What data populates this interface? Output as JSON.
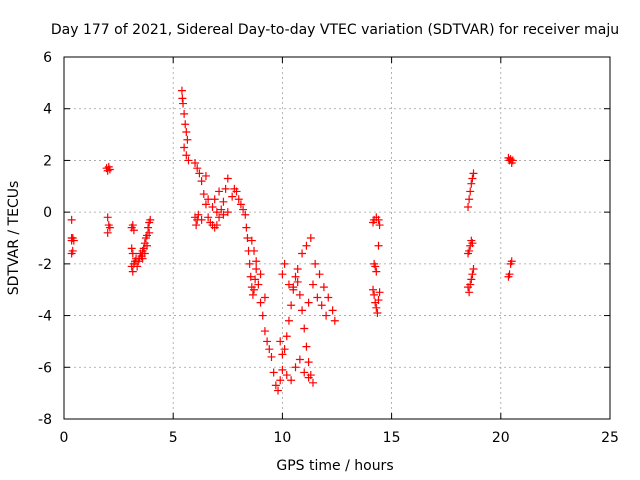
{
  "chart_data": {
    "type": "scatter",
    "title": "Day 177 of 2021, Sidereal Day-to-day VTEC variation (SDTVAR) for receiver maju",
    "xlabel": "GPS time / hours",
    "ylabel": "SDTVAR / TECUs",
    "xlim": [
      0,
      25
    ],
    "ylim": [
      -8,
      6
    ],
    "x_ticks": [
      0,
      5,
      10,
      15,
      20,
      25
    ],
    "y_ticks": [
      -8,
      -6,
      -4,
      -2,
      0,
      2,
      4,
      6
    ],
    "x_tick_labels": [
      "0",
      "5",
      "10",
      "15",
      "20",
      "25"
    ],
    "y_tick_labels": [
      "-8",
      "-6",
      "-4",
      "-2",
      "0",
      "2",
      "4",
      "6"
    ],
    "grid": true,
    "marker": "+",
    "color": "#ff0000",
    "series": [
      {
        "name": "SDTVAR",
        "points": [
          [
            0.35,
            -0.3
          ],
          [
            0.35,
            -1.0
          ],
          [
            0.35,
            -1.1
          ],
          [
            0.35,
            -1.6
          ],
          [
            0.4,
            -1.0
          ],
          [
            0.4,
            -1.5
          ],
          [
            0.45,
            -1.1
          ],
          [
            1.95,
            1.7
          ],
          [
            2.0,
            1.6
          ],
          [
            2.05,
            1.75
          ],
          [
            2.1,
            1.65
          ],
          [
            2.0,
            -0.2
          ],
          [
            2.05,
            -0.5
          ],
          [
            2.0,
            -0.8
          ],
          [
            2.1,
            -0.6
          ],
          [
            3.1,
            -0.6
          ],
          [
            3.15,
            -0.5
          ],
          [
            3.2,
            -0.7
          ],
          [
            3.1,
            -1.4
          ],
          [
            3.15,
            -1.6
          ],
          [
            3.1,
            -2.1
          ],
          [
            3.15,
            -2.3
          ],
          [
            3.2,
            -2.0
          ],
          [
            3.25,
            -1.9
          ],
          [
            3.3,
            -1.8
          ],
          [
            3.35,
            -2.1
          ],
          [
            3.4,
            -1.9
          ],
          [
            3.45,
            -1.8
          ],
          [
            3.5,
            -1.6
          ],
          [
            3.55,
            -1.7
          ],
          [
            3.6,
            -1.5
          ],
          [
            3.65,
            -1.4
          ],
          [
            3.7,
            -1.2
          ],
          [
            3.75,
            -1.0
          ],
          [
            3.8,
            -0.9
          ],
          [
            3.85,
            -0.6
          ],
          [
            3.9,
            -0.4
          ],
          [
            3.95,
            -0.3
          ],
          [
            3.6,
            -1.8
          ],
          [
            3.7,
            -1.6
          ],
          [
            3.8,
            -1.3
          ],
          [
            3.9,
            -0.8
          ],
          [
            5.4,
            4.7
          ],
          [
            5.42,
            4.4
          ],
          [
            5.45,
            4.2
          ],
          [
            5.5,
            3.8
          ],
          [
            5.55,
            3.4
          ],
          [
            5.6,
            3.1
          ],
          [
            5.65,
            2.8
          ],
          [
            5.5,
            2.5
          ],
          [
            5.6,
            2.2
          ],
          [
            5.7,
            2.0
          ],
          [
            6.0,
            -0.2
          ],
          [
            6.05,
            -0.5
          ],
          [
            6.1,
            -0.3
          ],
          [
            6.15,
            -0.1
          ],
          [
            6.0,
            1.9
          ],
          [
            6.1,
            1.7
          ],
          [
            6.2,
            1.5
          ],
          [
            6.3,
            1.2
          ],
          [
            6.4,
            0.7
          ],
          [
            6.5,
            0.3
          ],
          [
            6.6,
            -0.2
          ],
          [
            6.7,
            -0.4
          ],
          [
            6.8,
            -0.5
          ],
          [
            6.9,
            -0.6
          ],
          [
            7.0,
            -0.5
          ],
          [
            7.1,
            -0.2
          ],
          [
            7.2,
            0.1
          ],
          [
            7.3,
            0.4
          ],
          [
            7.4,
            0.9
          ],
          [
            7.5,
            1.3
          ],
          [
            6.5,
            1.4
          ],
          [
            6.9,
            0.5
          ],
          [
            7.1,
            0.8
          ],
          [
            7.3,
            -0.1
          ],
          [
            7.5,
            0.0
          ],
          [
            6.8,
            0.2
          ],
          [
            6.3,
            -0.3
          ],
          [
            6.6,
            0.5
          ],
          [
            7.0,
            0.0
          ],
          [
            7.7,
            0.6
          ],
          [
            7.8,
            0.9
          ],
          [
            7.9,
            0.8
          ],
          [
            8.0,
            0.5
          ],
          [
            8.1,
            0.3
          ],
          [
            8.2,
            0.1
          ],
          [
            8.3,
            -0.1
          ],
          [
            8.35,
            -0.6
          ],
          [
            8.4,
            -1.0
          ],
          [
            8.45,
            -1.5
          ],
          [
            8.5,
            -2.0
          ],
          [
            8.55,
            -2.5
          ],
          [
            8.6,
            -2.9
          ],
          [
            8.65,
            -3.2
          ],
          [
            8.7,
            -3.0
          ],
          [
            8.75,
            -2.6
          ],
          [
            8.8,
            -2.2
          ],
          [
            8.9,
            -2.8
          ],
          [
            9.0,
            -3.5
          ],
          [
            9.1,
            -4.0
          ],
          [
            9.2,
            -4.6
          ],
          [
            9.3,
            -5.0
          ],
          [
            9.4,
            -5.3
          ],
          [
            9.5,
            -5.6
          ],
          [
            9.6,
            -6.2
          ],
          [
            9.7,
            -6.7
          ],
          [
            9.8,
            -6.9
          ],
          [
            9.9,
            -6.5
          ],
          [
            8.6,
            -1.1
          ],
          [
            8.7,
            -1.5
          ],
          [
            8.8,
            -1.9
          ],
          [
            9.0,
            -2.4
          ],
          [
            9.2,
            -3.3
          ],
          [
            9.9,
            -5.0
          ],
          [
            10.0,
            -5.5
          ],
          [
            10.1,
            -5.3
          ],
          [
            10.2,
            -4.8
          ],
          [
            10.3,
            -4.2
          ],
          [
            10.4,
            -3.6
          ],
          [
            10.5,
            -3.0
          ],
          [
            10.6,
            -2.5
          ],
          [
            10.7,
            -2.7
          ],
          [
            10.8,
            -3.2
          ],
          [
            10.9,
            -3.8
          ],
          [
            11.0,
            -4.5
          ],
          [
            11.1,
            -5.2
          ],
          [
            11.2,
            -5.8
          ],
          [
            11.3,
            -6.3
          ],
          [
            11.4,
            -6.6
          ],
          [
            10.0,
            -6.1
          ],
          [
            10.2,
            -6.3
          ],
          [
            10.4,
            -6.5
          ],
          [
            10.6,
            -6.0
          ],
          [
            10.8,
            -5.7
          ],
          [
            11.0,
            -6.2
          ],
          [
            11.2,
            -6.4
          ],
          [
            10.0,
            -2.4
          ],
          [
            10.1,
            -2.0
          ],
          [
            10.3,
            -2.8
          ],
          [
            10.5,
            -2.9
          ],
          [
            10.7,
            -2.2
          ],
          [
            10.9,
            -1.6
          ],
          [
            11.1,
            -1.3
          ],
          [
            11.3,
            -1.0
          ],
          [
            11.5,
            -2.0
          ],
          [
            11.7,
            -2.4
          ],
          [
            11.9,
            -2.9
          ],
          [
            12.1,
            -3.3
          ],
          [
            12.3,
            -3.8
          ],
          [
            12.4,
            -4.2
          ],
          [
            11.6,
            -3.3
          ],
          [
            11.8,
            -3.6
          ],
          [
            12.0,
            -4.0
          ],
          [
            11.4,
            -2.8
          ],
          [
            11.2,
            -3.5
          ],
          [
            14.15,
            -0.4
          ],
          [
            14.2,
            -0.3
          ],
          [
            14.3,
            -0.2
          ],
          [
            14.4,
            -0.3
          ],
          [
            14.45,
            -0.5
          ],
          [
            14.2,
            -2.0
          ],
          [
            14.25,
            -2.1
          ],
          [
            14.3,
            -2.3
          ],
          [
            14.4,
            -1.3
          ],
          [
            14.15,
            -3.0
          ],
          [
            14.2,
            -3.2
          ],
          [
            14.25,
            -3.5
          ],
          [
            14.3,
            -3.7
          ],
          [
            14.35,
            -3.9
          ],
          [
            14.4,
            -3.4
          ],
          [
            14.45,
            -3.1
          ],
          [
            18.5,
            0.2
          ],
          [
            18.55,
            0.5
          ],
          [
            18.6,
            0.8
          ],
          [
            18.65,
            1.1
          ],
          [
            18.7,
            1.3
          ],
          [
            18.75,
            1.5
          ],
          [
            18.5,
            -1.6
          ],
          [
            18.55,
            -1.5
          ],
          [
            18.6,
            -1.3
          ],
          [
            18.65,
            -1.1
          ],
          [
            18.7,
            -1.2
          ],
          [
            18.5,
            -2.9
          ],
          [
            18.55,
            -3.1
          ],
          [
            18.6,
            -2.8
          ],
          [
            18.65,
            -2.6
          ],
          [
            18.7,
            -2.4
          ],
          [
            18.75,
            -2.2
          ],
          [
            20.35,
            2.1
          ],
          [
            20.4,
            2.0
          ],
          [
            20.45,
            2.05
          ],
          [
            20.5,
            1.9
          ],
          [
            20.55,
            2.0
          ],
          [
            20.35,
            -2.5
          ],
          [
            20.4,
            -2.4
          ],
          [
            20.45,
            -2.0
          ],
          [
            20.5,
            -1.9
          ]
        ]
      }
    ]
  }
}
